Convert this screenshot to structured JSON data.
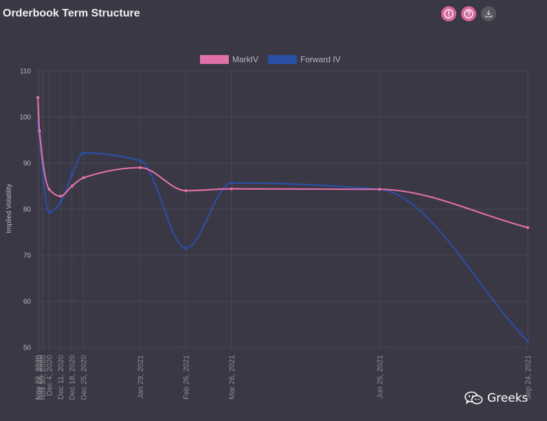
{
  "header": {
    "title": "Orderbook Term Structure",
    "icons": [
      "info-icon",
      "help-icon",
      "download-icon"
    ]
  },
  "watermark": {
    "label": "Greeks",
    "icon": "wechat-icon"
  },
  "colors": {
    "background": "#393844",
    "markiv": "#e070a8",
    "forward_iv": "#2a4fa6",
    "grid": "#4a4956",
    "text": "#b8b8c0"
  },
  "chart_data": {
    "type": "line",
    "title": "",
    "ylabel": "Implied Volatility",
    "xlabel": "",
    "ylim": [
      50,
      110
    ],
    "yticks": [
      50,
      60,
      70,
      80,
      90,
      100,
      110
    ],
    "grid": true,
    "legend_position": "top",
    "x_axis": {
      "start": "2020-11-27",
      "end": "2021-09-24",
      "ticks": [
        "2020-11-27",
        "2020-11-28",
        "2020-11-30",
        "2020-12-04",
        "2020-12-11",
        "2020-12-18",
        "2020-12-25",
        "2021-01-29",
        "2021-02-26",
        "2021-03-26",
        "2021-06-25",
        "2021-09-24"
      ],
      "tick_labels": [
        "Nov 27, 2020",
        "Nov 28, 2020",
        "Nov 30, 2020",
        "Dec 4, 2020",
        "Dec 11, 2020",
        "Dec 18, 2020",
        "Dec 25, 2020",
        "Jan 29, 2021",
        "Feb 26, 2021",
        "Mar 26, 2021",
        "Jun 25, 2021",
        "Sep 24, 2021"
      ]
    },
    "series": [
      {
        "name": "MarkIV",
        "color": "#e070a8",
        "points": [
          {
            "x": "2020-11-27",
            "y": 104.2
          },
          {
            "x": "2020-11-28",
            "y": 97.0
          },
          {
            "x": "2020-12-04",
            "y": 84.3
          },
          {
            "x": "2020-12-11",
            "y": 82.8
          },
          {
            "x": "2020-12-18",
            "y": 85.0
          },
          {
            "x": "2020-12-25",
            "y": 86.8
          },
          {
            "x": "2021-01-29",
            "y": 89.0
          },
          {
            "x": "2021-02-26",
            "y": 84.0
          },
          {
            "x": "2021-03-26",
            "y": 84.4
          },
          {
            "x": "2021-06-25",
            "y": 84.3
          },
          {
            "x": "2021-09-24",
            "y": 76.0
          }
        ]
      },
      {
        "name": "Forward IV",
        "color": "#2a4fa6",
        "points": [
          {
            "x": "2020-11-27",
            "y": 98.5
          },
          {
            "x": "2020-12-04",
            "y": 79.3
          },
          {
            "x": "2020-12-11",
            "y": 81.5
          },
          {
            "x": "2020-12-18",
            "y": 87.5
          },
          {
            "x": "2020-12-25",
            "y": 92.2
          },
          {
            "x": "2021-01-29",
            "y": 90.5
          },
          {
            "x": "2021-02-26",
            "y": 71.5
          },
          {
            "x": "2021-03-26",
            "y": 85.7
          },
          {
            "x": "2021-06-25",
            "y": 84.3
          },
          {
            "x": "2021-09-24",
            "y": 51.3
          }
        ]
      }
    ]
  }
}
